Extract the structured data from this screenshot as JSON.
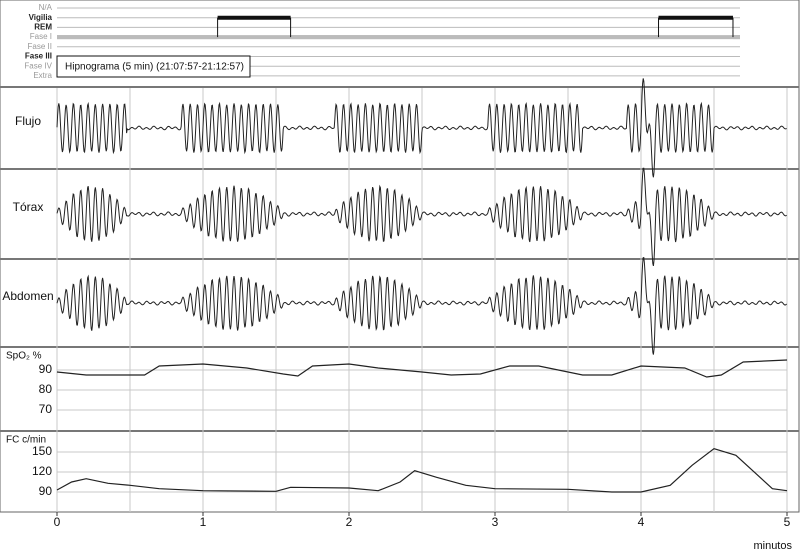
{
  "chart_data": [
    {
      "type": "hypnogram",
      "title": "Hipnograma (5 min) (21:07:57-21:12:57)",
      "stages": [
        "N/A",
        "Vigilia",
        "REM",
        "Fase I",
        "Fase II",
        "Fase III",
        "Fase IV",
        "Extra"
      ],
      "x": [
        0,
        1.1,
        1.6,
        4.12,
        4.63
      ],
      "values": [
        "Fase I",
        "Vigilia",
        "Fase I",
        "Vigilia",
        "Fase I"
      ],
      "xlim": [
        0,
        5
      ]
    },
    {
      "type": "waveform",
      "label": "Flujo",
      "xlim": [
        0,
        5
      ]
    },
    {
      "type": "waveform",
      "label": "Tórax",
      "xlim": [
        0,
        5
      ]
    },
    {
      "type": "waveform",
      "label": "Abdomen",
      "xlim": [
        0,
        5
      ]
    },
    {
      "type": "line",
      "label": "SpO₂ %",
      "color": "#222222",
      "x": [
        0,
        0.2,
        0.6,
        0.7,
        1.0,
        1.3,
        1.55,
        1.65,
        1.75,
        2.0,
        2.2,
        2.5,
        2.7,
        2.9,
        3.1,
        3.3,
        3.6,
        3.8,
        4.0,
        4.3,
        4.45,
        4.55,
        4.7,
        5.0
      ],
      "values": [
        89,
        87.5,
        87.5,
        92,
        93,
        91,
        88,
        87,
        92,
        93,
        91,
        89,
        87.5,
        88,
        92,
        92,
        87.5,
        87.5,
        92,
        91,
        86.5,
        87.5,
        94,
        95
      ],
      "xlim": [
        0,
        5
      ],
      "ylim": [
        60,
        101
      ],
      "yticks": [
        70,
        80,
        90
      ],
      "grid": true
    },
    {
      "type": "line",
      "label": "FC  c/min",
      "color": "#222222",
      "x": [
        0,
        0.1,
        0.2,
        0.35,
        0.5,
        0.7,
        1.0,
        1.5,
        1.6,
        2.0,
        2.2,
        2.35,
        2.45,
        2.6,
        2.8,
        3.0,
        3.5,
        3.8,
        4.0,
        4.2,
        4.35,
        4.5,
        4.65,
        4.8,
        4.9,
        5.0
      ],
      "values": [
        93,
        105,
        110,
        103,
        100,
        95,
        92,
        91,
        97,
        96,
        92,
        105,
        122,
        112,
        100,
        95,
        94,
        90,
        90,
        100,
        130,
        155,
        145,
        115,
        95,
        92
      ],
      "xlim": [
        0,
        5
      ],
      "ylim": [
        60,
        180
      ],
      "yticks": [
        90,
        120,
        150
      ],
      "grid": true,
      "xticks": [
        0,
        1,
        2,
        3,
        4,
        5
      ],
      "xgrid": [
        0,
        0.5,
        1,
        1.5,
        2,
        2.5,
        3,
        3.5,
        4,
        4.5,
        5
      ],
      "xlabel": "minutos"
    }
  ]
}
